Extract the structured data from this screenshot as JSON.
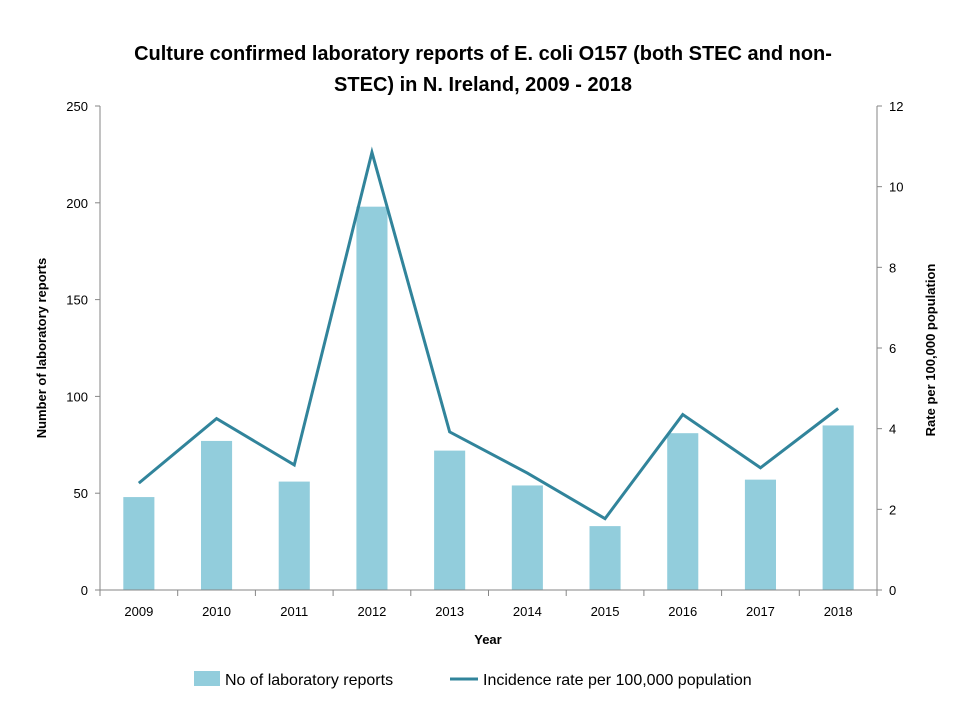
{
  "chart_data": {
    "type": "bar+line",
    "title_lines": [
      "Culture confirmed laboratory reports of E. coli O157 (both STEC and non-",
      "STEC) in N. Ireland, 2009 - 2018"
    ],
    "xlabel": "Year",
    "ylabel_left": "Number of laboratory reports",
    "ylabel_right": "Rate per 100,000 population",
    "categories": [
      "2009",
      "2010",
      "2011",
      "2012",
      "2013",
      "2014",
      "2015",
      "2016",
      "2017",
      "2018"
    ],
    "ylim_left": [
      0,
      250
    ],
    "yticks_left": [
      0,
      50,
      100,
      150,
      200,
      250
    ],
    "ylim_right": [
      0,
      12
    ],
    "yticks_right": [
      0,
      2,
      4,
      6,
      8,
      10,
      12
    ],
    "grid": false,
    "legend_position": "bottom",
    "series": [
      {
        "name": "No of laboratory reports",
        "kind": "bar",
        "axis": "left",
        "color": "#92cddc",
        "values": [
          48,
          77,
          56,
          198,
          72,
          54,
          33,
          81,
          57,
          85
        ]
      },
      {
        "name": "Incidence rate per 100,000 population",
        "kind": "line",
        "axis": "right",
        "color": "#31849b",
        "values": [
          2.65,
          4.25,
          3.1,
          10.85,
          3.92,
          2.9,
          1.77,
          4.35,
          3.03,
          4.5
        ]
      }
    ]
  }
}
